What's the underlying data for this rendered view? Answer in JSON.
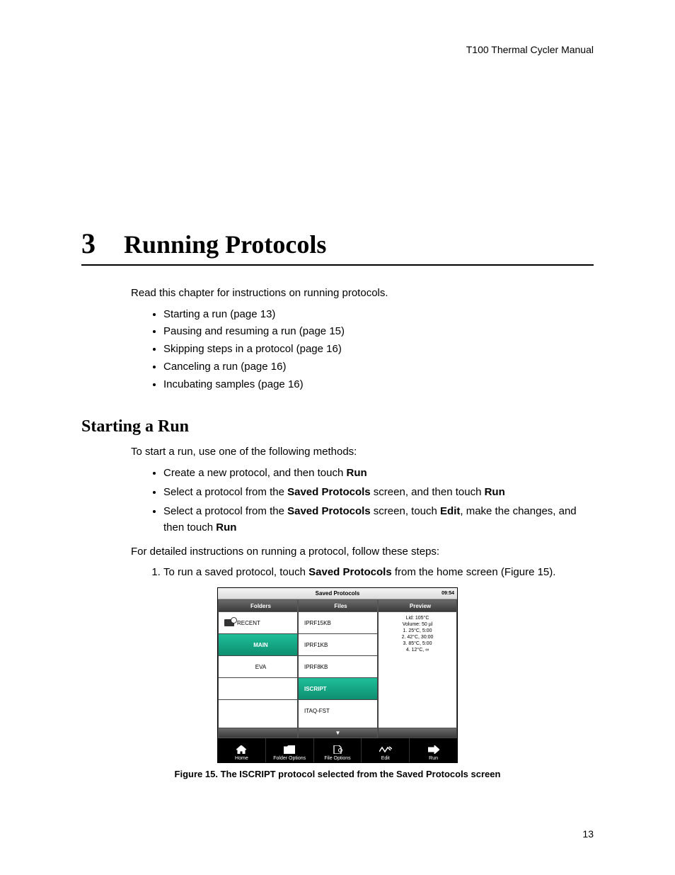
{
  "header": {
    "manual_title": "T100 Thermal Cycler Manual"
  },
  "chapter": {
    "number": "3",
    "title": "Running Protocols"
  },
  "intro": {
    "text": "Read this chapter for instructions on running protocols."
  },
  "toc": {
    "items": [
      "Starting a run (page 13)",
      "Pausing and resuming a run (page 15)",
      "Skipping steps in a protocol (page 16)",
      "Canceling a run (page 16)",
      "Incubating samples (page 16)"
    ]
  },
  "section": {
    "heading": "Starting a Run",
    "lead": "To start a run, use one of the following methods:"
  },
  "methods": {
    "items_html": [
      "Create a new protocol, and then touch <b>Run</b>",
      "Select a protocol from the <b>Saved Protocols</b> screen, and then touch <b>Run</b>",
      "Select a protocol from the <b>Saved Protocols</b> screen, touch <b>Edit</b>, make the changes, and then touch <b>Run</b>"
    ]
  },
  "detail": {
    "text": "For detailed instructions on running a protocol, follow these steps:"
  },
  "steps": {
    "items_html": [
      "To run a saved protocol, touch <b>Saved Protocols</b> from the home screen (Figure 15)."
    ]
  },
  "figure": {
    "caption": "Figure 15. The ISCRIPT protocol selected from the Saved Protocols screen"
  },
  "device": {
    "title": "Saved Protocols",
    "time": "09:54",
    "accent_color": "#15a884",
    "columns": {
      "folders": {
        "header": "Folders",
        "items": [
          "RECENT",
          "MAIN",
          "EVA"
        ],
        "selected_index": 1
      },
      "files": {
        "header": "Files",
        "items": [
          "IPRF15KB",
          "IPRF1KB",
          "IPRF8KB",
          "ISCRIPT",
          "ITAQ-FST"
        ],
        "selected_index": 3,
        "more_indicator": "▼"
      },
      "preview": {
        "header": "Preview",
        "lines": [
          "Lid: 105°C",
          "Volume: 50  µl",
          "1.  25°C, 5:00",
          "2.  42°C, 30:00",
          "3.  85°C, 5:00",
          "4.  12°C, ∞"
        ]
      }
    },
    "toolbar": [
      {
        "label": "Home",
        "icon": "home"
      },
      {
        "label": "Folder Options",
        "icon": "folder"
      },
      {
        "label": "File Options",
        "icon": "file"
      },
      {
        "label": "Edit",
        "icon": "edit"
      },
      {
        "label": "Run",
        "icon": "run"
      }
    ]
  },
  "page_number": "13"
}
